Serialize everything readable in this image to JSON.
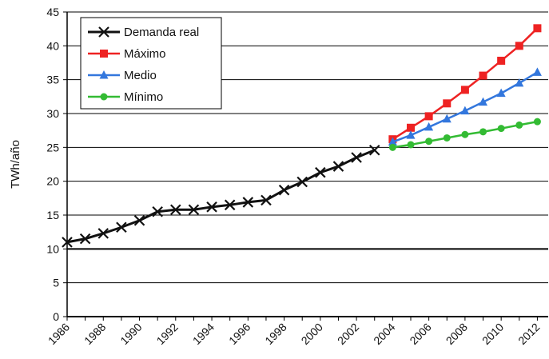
{
  "chart_data": {
    "type": "line",
    "title": "",
    "xlabel": "",
    "ylabel": "TWh/año",
    "xlim": [
      1986,
      2012.6
    ],
    "ylim": [
      0,
      45
    ],
    "x_ticks": [
      "1986",
      "1988",
      "1990",
      "1992",
      "1994",
      "1996",
      "1998",
      "2000",
      "2002",
      "2004",
      "2006",
      "2008",
      "2010",
      "2012"
    ],
    "y_ticks": [
      "0",
      "5",
      "10",
      "15",
      "20",
      "25",
      "30",
      "35",
      "40",
      "45"
    ],
    "grid": "horizontal",
    "legend_position": "top-left",
    "series": [
      {
        "name": "Demanda real",
        "color": "#111111",
        "marker": "x",
        "x": [
          1986,
          1987,
          1988,
          1989,
          1990,
          1991,
          1992,
          1993,
          1994,
          1995,
          1996,
          1997,
          1998,
          1999,
          2000,
          2001,
          2002,
          2003
        ],
        "y": [
          11.0,
          11.5,
          12.3,
          13.2,
          14.2,
          15.5,
          15.8,
          15.8,
          16.2,
          16.5,
          16.9,
          17.2,
          18.7,
          19.9,
          21.3,
          22.2,
          23.5,
          24.6
        ]
      },
      {
        "name": "Máximo",
        "color": "#ee2222",
        "marker": "square",
        "x": [
          2004,
          2005,
          2006,
          2007,
          2008,
          2009,
          2010,
          2011,
          2012
        ],
        "y": [
          26.2,
          27.9,
          29.6,
          31.5,
          33.5,
          35.6,
          37.8,
          40.0,
          42.6
        ]
      },
      {
        "name": "Medio",
        "color": "#3377dd",
        "marker": "triangle",
        "x": [
          2004,
          2005,
          2006,
          2007,
          2008,
          2009,
          2010,
          2011,
          2012
        ],
        "y": [
          25.8,
          26.8,
          28.0,
          29.2,
          30.4,
          31.7,
          33.0,
          34.5,
          36.1
        ]
      },
      {
        "name": "Mínimo",
        "color": "#33bb33",
        "marker": "circle",
        "x": [
          2004,
          2005,
          2006,
          2007,
          2008,
          2009,
          2010,
          2011,
          2012
        ],
        "y": [
          25.0,
          25.4,
          25.9,
          26.4,
          26.9,
          27.3,
          27.8,
          28.3,
          28.8
        ]
      }
    ]
  }
}
